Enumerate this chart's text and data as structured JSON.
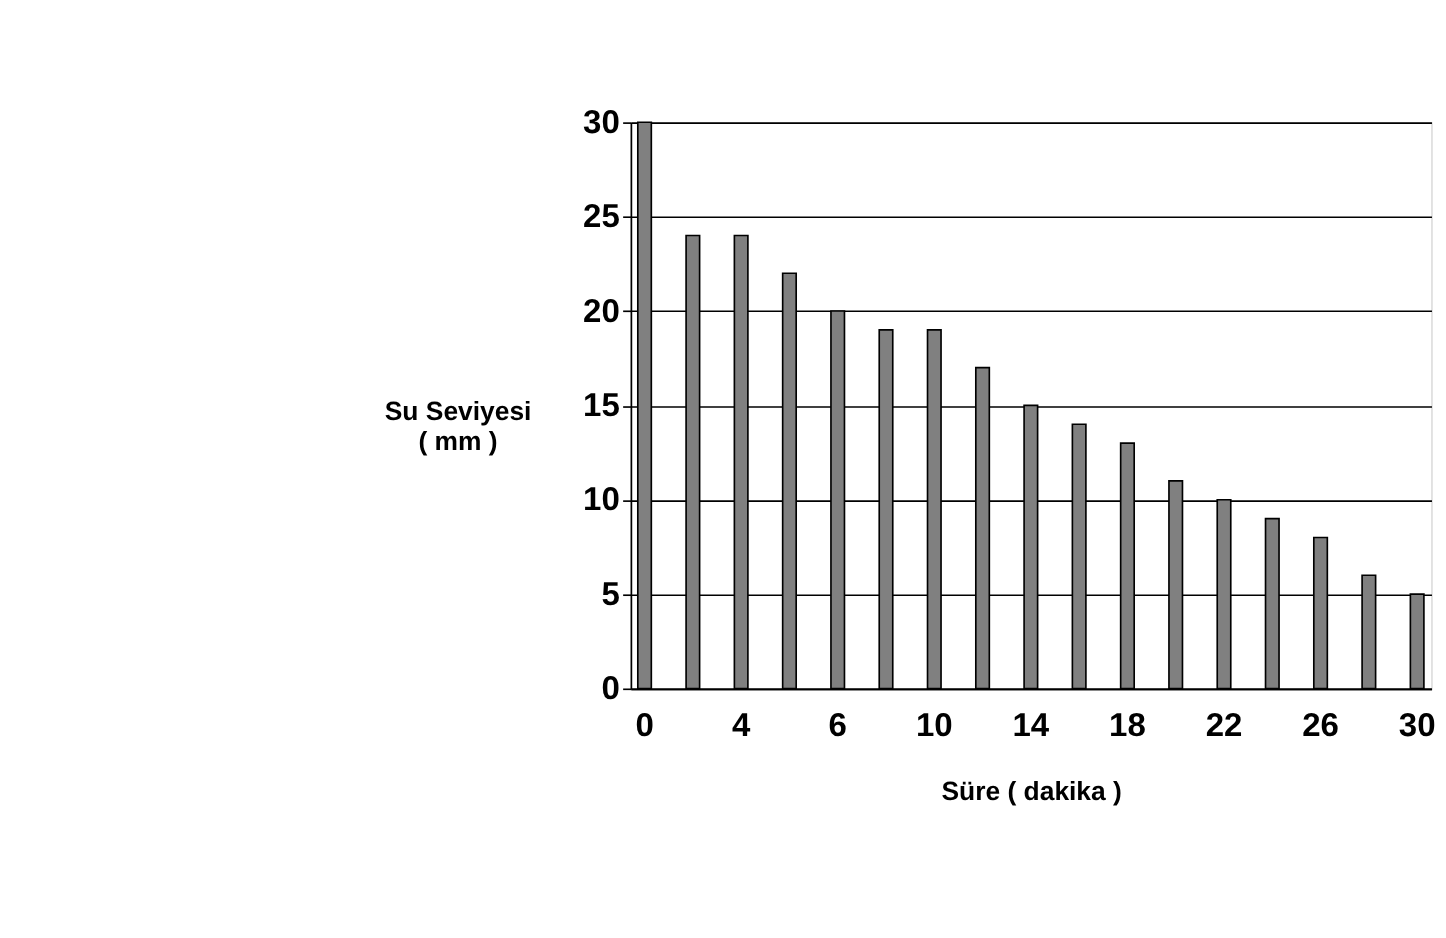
{
  "chart_data": {
    "type": "bar",
    "xlabel": "Süre ( dakika )",
    "ylabel": "Su Seviyesi\n( mm )",
    "categories": [
      "0",
      null,
      "4",
      null,
      "6",
      null,
      "10",
      null,
      "14",
      null,
      "18",
      null,
      "22",
      null,
      "26",
      null,
      "30"
    ],
    "values": [
      30,
      24,
      24,
      22,
      20,
      19,
      19,
      17,
      15,
      14,
      13,
      11,
      10,
      9,
      8,
      6,
      5
    ],
    "color": "#808080",
    "ylim": [
      0,
      30
    ],
    "yticks": [
      0,
      5,
      10,
      15,
      20,
      25,
      30
    ],
    "grid": "y"
  }
}
